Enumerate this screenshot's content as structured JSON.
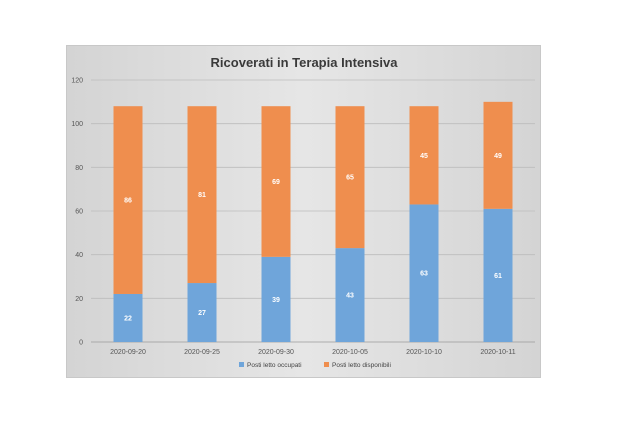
{
  "chart_data": {
    "type": "bar",
    "stacked": true,
    "title": "Ricoverati in Terapia Intensiva",
    "categories": [
      "2020-09-20",
      "2020-09-25",
      "2020-09-30",
      "2020-10-05",
      "2020-10-10",
      "2020-10-11"
    ],
    "series": [
      {
        "name": "Posti letto occupati",
        "values": [
          22,
          27,
          39,
          43,
          63,
          61
        ],
        "color": "#6fa5da"
      },
      {
        "name": "Posti letto disponibili",
        "values": [
          86,
          81,
          69,
          65,
          45,
          49
        ],
        "color": "#ef8e4e"
      }
    ],
    "y_ticks": [
      "0",
      "20",
      "40",
      "60",
      "80",
      "100",
      "120"
    ],
    "ylim": [
      0,
      120
    ],
    "grid": true,
    "legend_position": "bottom"
  }
}
